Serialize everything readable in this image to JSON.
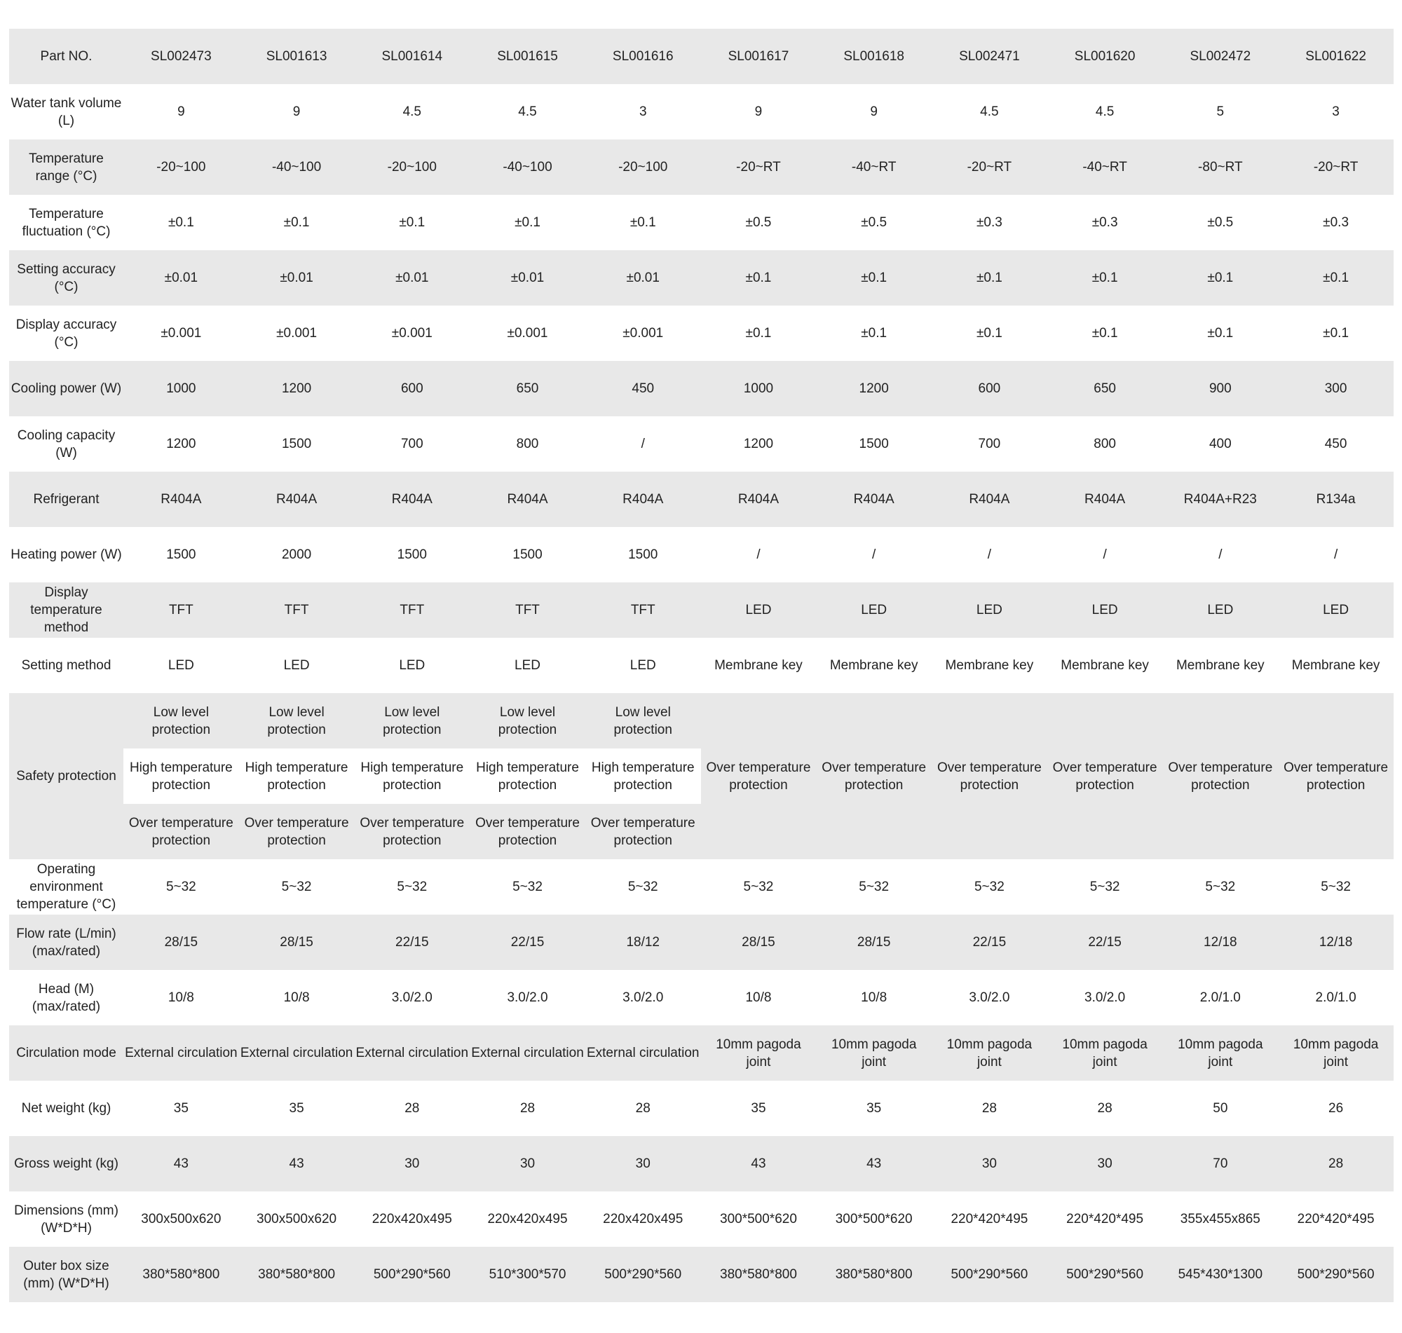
{
  "table": {
    "rows": [
      {
        "label": "Part NO.",
        "values": [
          "SL002473",
          "SL001613",
          "SL001614",
          "SL001615",
          "SL001616",
          "SL001617",
          "SL001618",
          "SL002471",
          "SL001620",
          "SL002472",
          "SL001622"
        ]
      },
      {
        "label": "Water tank volume (L)",
        "values": [
          "9",
          "9",
          "4.5",
          "4.5",
          "3",
          "9",
          "9",
          "4.5",
          "4.5",
          "5",
          "3"
        ]
      },
      {
        "label": "Temperature range (°C)",
        "values": [
          "-20~100",
          "-40~100",
          "-20~100",
          "-40~100",
          "-20~100",
          "-20~RT",
          "-40~RT",
          "-20~RT",
          "-40~RT",
          "-80~RT",
          "-20~RT"
        ]
      },
      {
        "label": "Temperature fluctuation (°C)",
        "values": [
          "±0.1",
          "±0.1",
          "±0.1",
          "±0.1",
          "±0.1",
          "±0.5",
          "±0.5",
          "±0.3",
          "±0.3",
          "±0.5",
          "±0.3"
        ]
      },
      {
        "label": "Setting accuracy (°C)",
        "values": [
          "±0.01",
          "±0.01",
          "±0.01",
          "±0.01",
          "±0.01",
          "±0.1",
          "±0.1",
          "±0.1",
          "±0.1",
          "±0.1",
          "±0.1"
        ]
      },
      {
        "label": "Display accuracy (°C)",
        "values": [
          "±0.001",
          "±0.001",
          "±0.001",
          "±0.001",
          "±0.001",
          "±0.1",
          "±0.1",
          "±0.1",
          "±0.1",
          "±0.1",
          "±0.1"
        ]
      },
      {
        "label": "Cooling power (W)",
        "values": [
          "1000",
          "1200",
          "600",
          "650",
          "450",
          "1000",
          "1200",
          "600",
          "650",
          "900",
          "300"
        ]
      },
      {
        "label": "Cooling capacity (W)",
        "values": [
          "1200",
          "1500",
          "700",
          "800",
          "/",
          "1200",
          "1500",
          "700",
          "800",
          "400",
          "450"
        ]
      },
      {
        "label": "Refrigerant",
        "values": [
          "R404A",
          "R404A",
          "R404A",
          "R404A",
          "R404A",
          "R404A",
          "R404A",
          "R404A",
          "R404A",
          "R404A+R23",
          "R134a"
        ]
      },
      {
        "label": "Heating power (W)",
        "values": [
          "1500",
          "2000",
          "1500",
          "1500",
          "1500",
          "/",
          "/",
          "/",
          "/",
          "/",
          "/"
        ]
      },
      {
        "label": "Display temperature method",
        "values": [
          "TFT",
          "TFT",
          "TFT",
          "TFT",
          "TFT",
          "LED",
          "LED",
          "LED",
          "LED",
          "LED",
          "LED"
        ]
      },
      {
        "label": "Setting method",
        "values": [
          "LED",
          "LED",
          "LED",
          "LED",
          "LED",
          "Membrane key",
          "Membrane key",
          "Membrane key",
          "Membrane key",
          "Membrane key",
          "Membrane key"
        ]
      },
      {
        "label": "Safety protection",
        "safety": true,
        "values": [
          [
            "Low level protection",
            "High temperature protection",
            "Over temperature protection"
          ],
          [
            "Low level protection",
            "High temperature protection",
            "Over temperature protection"
          ],
          [
            "Low level protection",
            "High temperature protection",
            "Over temperature protection"
          ],
          [
            "Low level protection",
            "High temperature protection",
            "Over temperature protection"
          ],
          [
            "Low level protection",
            "High temperature protection",
            "Over temperature protection"
          ],
          "Over temperature protection",
          "Over temperature protection",
          "Over temperature protection",
          "Over temperature protection",
          "Over temperature protection",
          "Over temperature protection"
        ]
      },
      {
        "label": "Operating environment temperature (°C)",
        "values": [
          "5~32",
          "5~32",
          "5~32",
          "5~32",
          "5~32",
          "5~32",
          "5~32",
          "5~32",
          "5~32",
          "5~32",
          "5~32"
        ]
      },
      {
        "label": "Flow rate (L/min) (max/rated)",
        "values": [
          "28/15",
          "28/15",
          "22/15",
          "22/15",
          "18/12",
          "28/15",
          "28/15",
          "22/15",
          "22/15",
          "12/18",
          "12/18"
        ]
      },
      {
        "label": "Head (M) (max/rated)",
        "values": [
          "10/8",
          "10/8",
          "3.0/2.0",
          "3.0/2.0",
          "3.0/2.0",
          "10/8",
          "10/8",
          "3.0/2.0",
          "3.0/2.0",
          "2.0/1.0",
          "2.0/1.0"
        ]
      },
      {
        "label": "Circulation mode",
        "values": [
          "External circulation",
          "External circulation",
          "External circulation",
          "External circulation",
          "External circulation",
          "10mm pagoda joint",
          "10mm pagoda joint",
          "10mm pagoda joint",
          "10mm pagoda joint",
          "10mm pagoda joint",
          "10mm pagoda joint"
        ]
      },
      {
        "label": "Net weight (kg)",
        "values": [
          "35",
          "35",
          "28",
          "28",
          "28",
          "35",
          "35",
          "28",
          "28",
          "50",
          "26"
        ]
      },
      {
        "label": "Gross weight (kg)",
        "values": [
          "43",
          "43",
          "30",
          "30",
          "30",
          "43",
          "43",
          "30",
          "30",
          "70",
          "28"
        ]
      },
      {
        "label": "Dimensions (mm) (W*D*H)",
        "values": [
          "300x500x620",
          "300x500x620",
          "220x420x495",
          "220x420x495",
          "220x420x495",
          "300*500*620",
          "300*500*620",
          "220*420*495",
          "220*420*495",
          "355x455x865",
          "220*420*495"
        ]
      },
      {
        "label": "Outer box size (mm) (W*D*H)",
        "values": [
          "380*580*800",
          "380*580*800",
          "500*290*560",
          "510*300*570",
          "500*290*560",
          "380*580*800",
          "380*580*800",
          "500*290*560",
          "500*290*560",
          "545*430*1300",
          "500*290*560"
        ]
      }
    ]
  },
  "colors": {
    "row_gray": "#e8e8e8",
    "row_white": "#ffffff",
    "text": "#222222"
  }
}
